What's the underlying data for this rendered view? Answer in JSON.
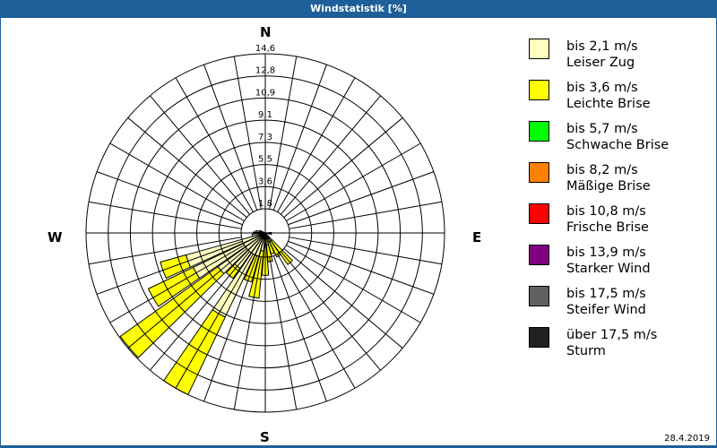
{
  "window": {
    "title": "Windstatistik [%]",
    "date": "28.4.2019"
  },
  "compass": {
    "n": "N",
    "e": "E",
    "s": "S",
    "w": "W"
  },
  "legend": [
    {
      "range": "bis 2,1 m/s",
      "name": "Leiser Zug",
      "color": "#FFFFC0"
    },
    {
      "range": "bis 3,6 m/s",
      "name": "Leichte Brise",
      "color": "#FFFF00"
    },
    {
      "range": "bis 5,7 m/s",
      "name": "Schwache Brise",
      "color": "#00FF00"
    },
    {
      "range": "bis 8,2 m/s",
      "name": "Mäßige Brise",
      "color": "#FF8000"
    },
    {
      "range": "bis 10,8 m/s",
      "name": "Frische Brise",
      "color": "#FF0000"
    },
    {
      "range": "bis 13,9 m/s",
      "name": "Starker Wind",
      "color": "#800080"
    },
    {
      "range": "bis 17,5 m/s",
      "name": "Steifer Wind",
      "color": "#606060"
    },
    {
      "range": "über 17,5 m/s",
      "name": "Sturm",
      "color": "#202020"
    }
  ],
  "chart_data": {
    "type": "polar-stacked-bar (wind rose)",
    "title": "Windstatistik [%]",
    "radial_unit": "%",
    "radial_ticks": [
      "1,8",
      "3,6",
      "5,5",
      "7,3",
      "9,1",
      "10,9",
      "12,8",
      "14,6"
    ],
    "radial_max": 14.6,
    "direction_step_deg": 10,
    "directions_labeled": [
      "N",
      "E",
      "S",
      "W"
    ],
    "series_names": [
      "bis 2,1 m/s",
      "bis 3,6 m/s"
    ],
    "sectors": [
      {
        "dir": 90,
        "bins": [
          0.3,
          0.0
        ]
      },
      {
        "dir": 100,
        "bins": [
          0.3,
          0.0
        ]
      },
      {
        "dir": 140,
        "bins": [
          0.6,
          2.4
        ]
      },
      {
        "dir": 150,
        "bins": [
          0.6,
          1.4
        ]
      },
      {
        "dir": 160,
        "bins": [
          0.6,
          1.0
        ]
      },
      {
        "dir": 170,
        "bins": [
          0.8,
          1.4
        ]
      },
      {
        "dir": 180,
        "bins": [
          1.0,
          2.3
        ]
      },
      {
        "dir": 190,
        "bins": [
          1.3,
          3.9
        ]
      },
      {
        "dir": 200,
        "bins": [
          1.8,
          2.2
        ]
      },
      {
        "dir": 210,
        "bins": [
          7.5,
          7.1
        ]
      },
      {
        "dir": 220,
        "bins": [
          3.4,
          1.0
        ]
      },
      {
        "dir": 230,
        "bins": [
          4.6,
          9.9
        ]
      },
      {
        "dir": 240,
        "bins": [
          6.4,
          4.1
        ]
      },
      {
        "dir": 250,
        "bins": [
          6.6,
          2.2
        ]
      },
      {
        "dir": 260,
        "bins": [
          0.9,
          0.0
        ]
      },
      {
        "dir": 270,
        "bins": [
          0.5,
          0.3
        ]
      },
      {
        "dir": 280,
        "bins": [
          0.6,
          0.0
        ]
      },
      {
        "dir": 290,
        "bins": [
          0.3,
          0.0
        ]
      }
    ]
  }
}
